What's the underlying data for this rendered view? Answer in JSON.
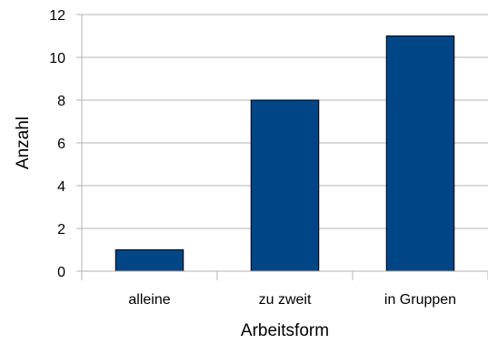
{
  "chart_data": {
    "type": "bar",
    "categories": [
      "alleine",
      "zu zweit",
      "in Gruppen"
    ],
    "values": [
      1,
      8,
      11
    ],
    "xlabel": "Arbeitsform",
    "ylabel": "Anzahl",
    "ylim": [
      0,
      12
    ],
    "yticks": [
      0,
      2,
      4,
      6,
      8,
      10,
      12
    ],
    "grid": true,
    "legend": "none",
    "bar_color": "#004586",
    "bar_edge_color": "#000000",
    "grid_color": "#b3b3b3"
  }
}
